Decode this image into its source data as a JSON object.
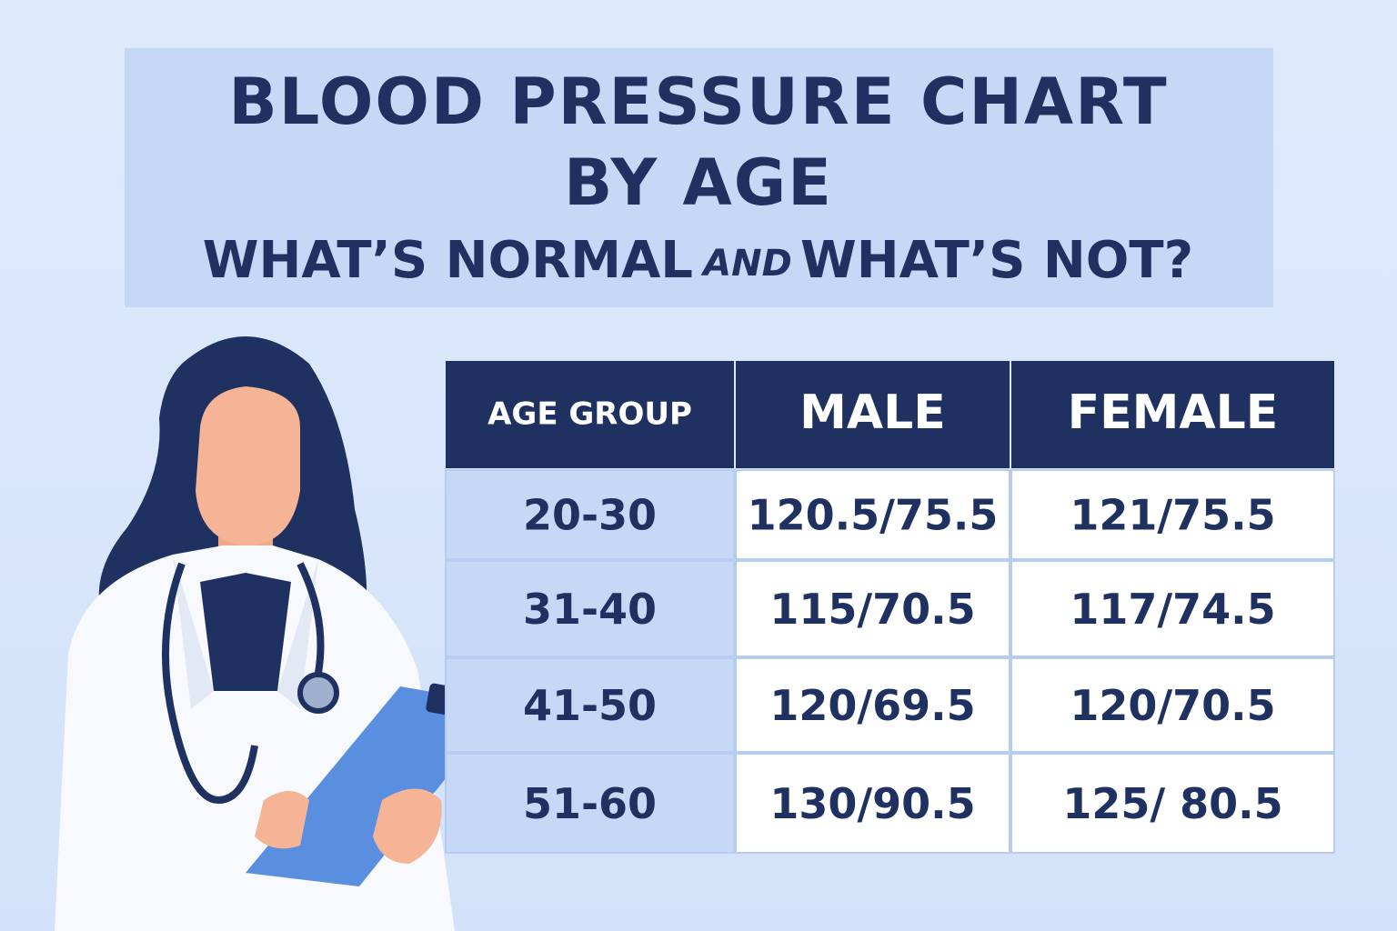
{
  "header": {
    "title_line1": "BLOOD PRESSURE CHART",
    "title_line2": "BY AGE",
    "subtitle_part1": "WHAT’S NORMAL",
    "subtitle_and": "AND",
    "subtitle_part2": "WHAT’S NOT?"
  },
  "table": {
    "columns": [
      "AGE GROUP",
      "MALE",
      "FEMALE"
    ],
    "rows": [
      [
        "20-30",
        "120.5/75.5",
        "121/75.5"
      ],
      [
        "31-40",
        "115/70.5",
        "117/74.5"
      ],
      [
        "41-50",
        "120/69.5",
        "120/70.5"
      ],
      [
        "51-60",
        "130/90.5",
        "125/ 80.5"
      ]
    ]
  }
}
